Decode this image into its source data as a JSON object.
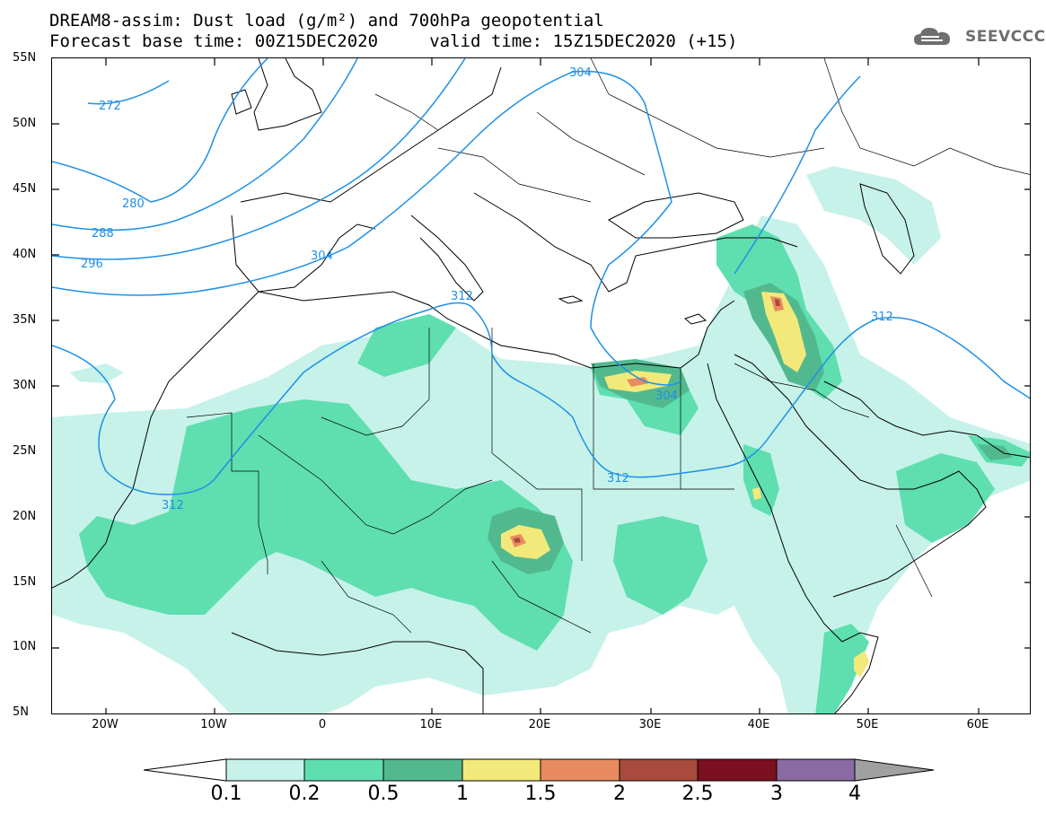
{
  "header": {
    "line1": "DREAM8-assim: Dust load (g/m²) and 700hPa geopotential",
    "line2": "Forecast base time: 00Z15DEC2020     valid time: 15Z15DEC2020 (+15)"
  },
  "logo": {
    "text": "SEEVCCC",
    "icon": "cloud-icon"
  },
  "map": {
    "lat_labels": [
      "55N",
      "50N",
      "45N",
      "40N",
      "35N",
      "30N",
      "25N",
      "20N",
      "15N",
      "10N",
      "5N"
    ],
    "lon_labels": [
      "20W",
      "10W",
      "0",
      "10E",
      "20E",
      "30E",
      "40E",
      "50E",
      "60E"
    ],
    "contour_labels": [
      "272",
      "280",
      "288",
      "296",
      "304",
      "304",
      "312",
      "312",
      "304",
      "312",
      "312"
    ],
    "colors": {
      "contour": "#1e90e6",
      "coastline": "#000000",
      "border": "#000000"
    }
  },
  "colorbar": {
    "labels": [
      "0.1",
      "0.2",
      "0.5",
      "1",
      "1.5",
      "2",
      "2.5",
      "3",
      "4"
    ],
    "colors": [
      "#c6f2e9",
      "#5fdeb0",
      "#52b98f",
      "#f2e97a",
      "#e88b60",
      "#a84a3d",
      "#7a1020",
      "#8a6aa0",
      "#a0a0a0"
    ]
  },
  "legend_colors": {
    "light_mint": "#c6f2e9",
    "mint": "#5fdeb0",
    "green": "#52b98f",
    "yellow": "#f2e97a",
    "orange": "#e88b60",
    "brown": "#a84a3d"
  }
}
